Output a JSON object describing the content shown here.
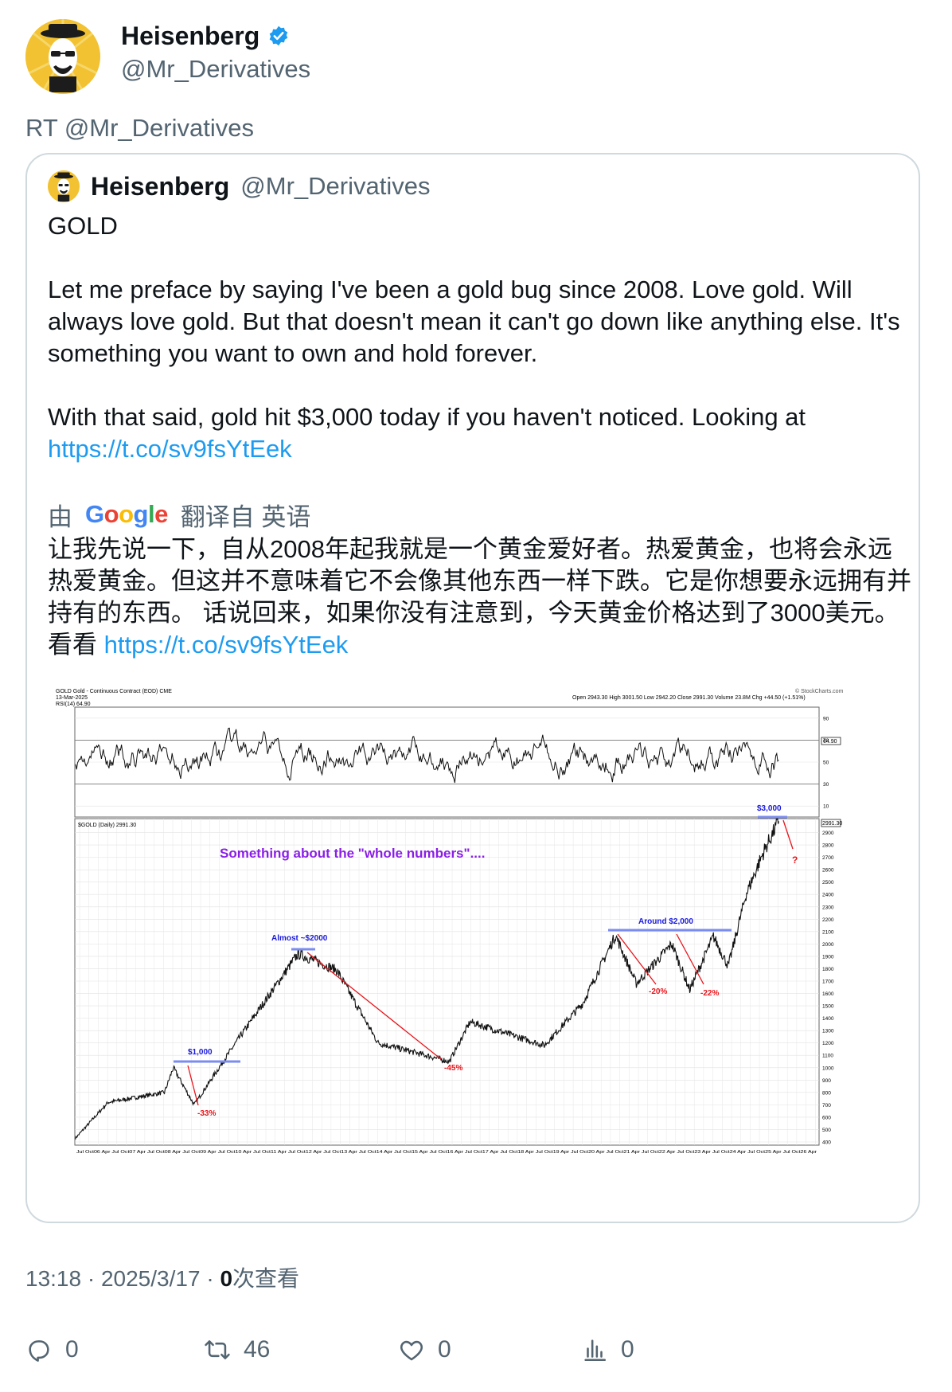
{
  "author": {
    "display_name": "Heisenberg",
    "handle": "@Mr_Derivatives",
    "verified_icon": "verified-badge-icon",
    "verified_color": "#1d9bf0"
  },
  "retweet_line": "RT @Mr_Derivatives",
  "quoted": {
    "display_name": "Heisenberg",
    "handle": "@Mr_Derivatives",
    "title": "GOLD",
    "para1": "Let me preface by saying I've been a gold bug since 2008. Love gold. Will always love gold. But that doesn't mean it can't go down like anything else. It's something you want to own and hold forever.",
    "para2_prefix": "With that said, gold hit $3,000 today if you haven't noticed. Looking at",
    "link": "https://t.co/sv9fsYtEek",
    "translation_bar": {
      "prefix": "由",
      "google": "Google",
      "suffix": "翻译自 英语"
    },
    "translated_text": "让我先说一下，自从2008年起我就是一个黄金爱好者。热爱黄金，也将会永远热爱黄金。但这并不意味着它不会像其他东西一样下跌。它是你想要永远拥有并持有的东西。 话说回来，如果你没有注意到，今天黄金价格达到了3000美元。看看",
    "translated_link": "https://t.co/sv9fsYtEek"
  },
  "chart_image": {
    "header_title": "GOLD Gold - Continuous Contract (EOD) CME",
    "header_date": "13-Mar-2025",
    "header_rsi": "RSI(14) 64.90",
    "header_ohlc": "Open 2943.30 High 3001.50 Low 2942.20 Close 2991.30 Volume 23.8M Chg +44.50 (+1.51%)",
    "watermark": "© StockCharts.com",
    "rsi_ticks": [
      "90",
      "70",
      "50",
      "30",
      "10"
    ],
    "rsi_value_box": "64.90",
    "price_label": "$GOLD (Daily) 2991.30",
    "price_value_box": "2991.30",
    "price_ticks": [
      "2900",
      "2800",
      "2700",
      "2600",
      "2500",
      "2400",
      "2300",
      "2200",
      "2100",
      "2000",
      "1900",
      "1800",
      "1700",
      "1600",
      "1500",
      "1400",
      "1300",
      "1200",
      "1100",
      "1000",
      "900",
      "800",
      "700",
      "600",
      "500",
      "400"
    ],
    "x_axis": "Jul Oct06 Apr Jul Oct07 Apr Jul Oct08 Apr Jul Oct09 Apr Jul Oct10 Apr Jul Oct11 Apr Jul Oct12 Apr Jul Oct13 Apr Jul Oct14 Apr Jul Oct15 Apr Jul Oct16 Apr Jul Oct17 Apr Jul Oct18 Apr Jul Oct19 Apr Jul Oct20 Apr Jul Oct21 Apr Jul Oct22 Apr Jul Oct23 Apr Jul Oct24 Apr Jul Oct25 Apr Jul Oct26 Apr",
    "annotation_main": "Something about the \"whole numbers\"....",
    "annotations": {
      "k1000": "$1,000",
      "k1000_drop": "-33%",
      "almost2000": "Almost ~$2000",
      "drop45": "-45%",
      "around2000": "Around $2,000",
      "drop20": "-20%",
      "drop22": "-22%",
      "k3000": "$3,000",
      "question": "?"
    },
    "colors": {
      "annotation_blue": "#1a1adb",
      "annotation_red": "#e8141b",
      "annotation_purple": "#8a1ee6",
      "level_line": "#7b8cf0"
    }
  },
  "meta": {
    "time": "13:18",
    "date": "2025/3/17",
    "views_count": "0",
    "views_label": "次查看"
  },
  "actions": {
    "reply_count": "0",
    "retweet_count": "46",
    "like_count": "0",
    "views_count": "0"
  },
  "chart_data": {
    "type": "line",
    "title": "GOLD Gold - Continuous Contract (EOD) CME",
    "x": [
      "2005-06",
      "2006-05",
      "2007-12",
      "2008-03",
      "2008-10",
      "2009-12",
      "2011-09",
      "2012-10",
      "2013-12",
      "2015-12",
      "2016-07",
      "2018-08",
      "2019-09",
      "2020-08",
      "2021-03",
      "2022-03",
      "2022-09",
      "2023-05",
      "2023-10",
      "2024-04",
      "2024-10",
      "2025-03"
    ],
    "series": [
      {
        "values": [
          430,
          720,
          800,
          1000,
          700,
          1200,
          1920,
          1790,
          1200,
          1050,
          1370,
          1180,
          1520,
          2070,
          1680,
          2000,
          1630,
          2060,
          1820,
          2400,
          2750,
          2991
        ]
      }
    ],
    "ylim": [
      400,
      3000
    ],
    "xlabel": "",
    "ylabel": "",
    "grid": true
  }
}
